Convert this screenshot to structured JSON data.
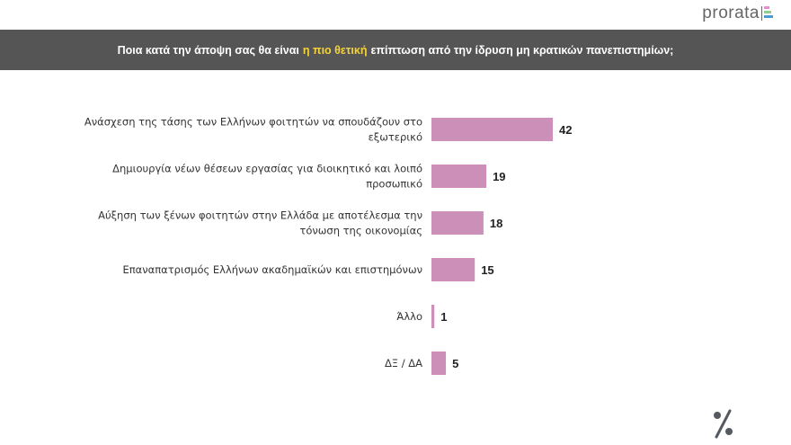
{
  "logo": {
    "text": "prorata",
    "colors": [
      "#e58fd0",
      "#8fd08f",
      "#4a9ad4"
    ]
  },
  "banner": {
    "title_before": "Ποια κατά την άποψη σας θα είναι",
    "title_highlight": "η πιο θετική",
    "title_after": "επίπτωση από την ίδρυση μη κρατικών πανεπιστημίων;",
    "background": "#555555",
    "highlight_color": "#f5d33a"
  },
  "chart_data": {
    "type": "bar",
    "orientation": "horizontal",
    "categories": [
      [
        "Ανάσχεση της τάσης των Ελλήνων φοιτητών να σπουδάζουν στο",
        "εξωτερικό"
      ],
      [
        "Δημιουργία νέων θέσεων εργασίας για διοικητικό και λοιπό",
        "προσωπικό"
      ],
      [
        "Αύξηση των ξένων φοιτητών στην Ελλάδα με αποτέλεσμα την",
        "τόνωση της οικονομίας"
      ],
      [
        "Επαναπατρισμός Ελλήνων ακαδημαϊκών και επιστημόνων"
      ],
      [
        "Άλλο"
      ],
      [
        "ΔΞ / ΔΑ"
      ]
    ],
    "values": [
      42,
      19,
      18,
      15,
      1,
      5
    ],
    "bar_color": "#cc8fb8",
    "data_labels": true,
    "grid": false
  },
  "footer": {
    "icon": "percent-icon"
  }
}
